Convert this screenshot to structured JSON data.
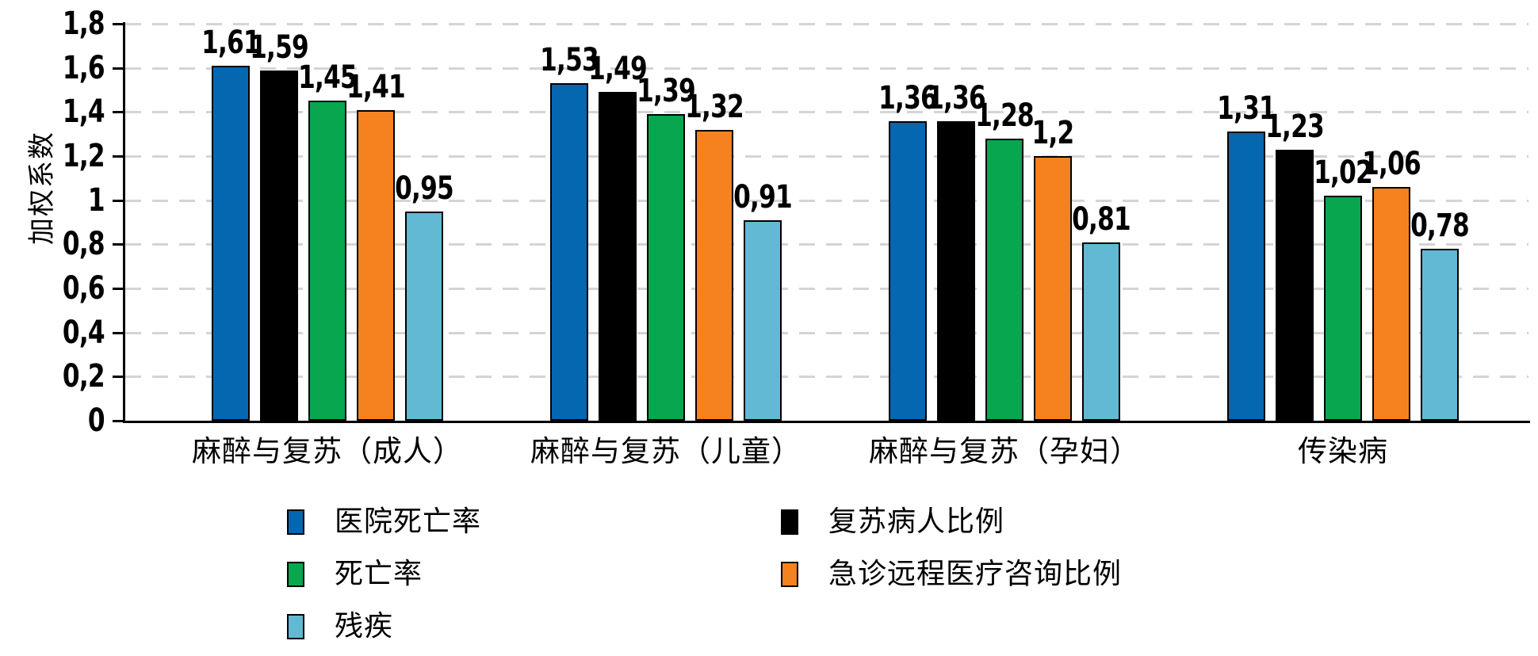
{
  "chart_data": {
    "type": "bar",
    "title": "",
    "ylabel": "加权系数",
    "xlabel": "",
    "ylim": [
      0,
      1.8
    ],
    "ytick_step": 0.2,
    "ytick_labels": [
      "0",
      "0,2",
      "0,4",
      "0,6",
      "0,8",
      "1",
      "1,2",
      "1,4",
      "1,6",
      "1,8"
    ],
    "grid": "horizontal-dashed",
    "gridline_color": "#d4d4d4",
    "legend_position": "bottom-two-columns",
    "decimal_separator": ",",
    "categories": [
      "麻醉与复苏（成人）",
      "麻醉与复苏（儿童）",
      "麻醉与复苏（孕妇）",
      "传染病"
    ],
    "series": [
      {
        "name": "医院死亡率",
        "color": "#0667b1",
        "values": [
          1.61,
          1.53,
          1.36,
          1.31
        ],
        "labels": [
          "1,61",
          "1,53",
          "1,36",
          "1,31"
        ]
      },
      {
        "name": "复苏病人比例",
        "color": "#000000",
        "values": [
          1.59,
          1.49,
          1.36,
          1.23
        ],
        "labels": [
          "1,59",
          "1,49",
          "1,36",
          "1,23"
        ]
      },
      {
        "name": "死亡率",
        "color": "#07a64f",
        "values": [
          1.45,
          1.39,
          1.28,
          1.02
        ],
        "labels": [
          "1,45",
          "1,39",
          "1,28",
          "1,02"
        ]
      },
      {
        "name": "急诊远程医疗咨询比例",
        "color": "#f5821f",
        "values": [
          1.41,
          1.32,
          1.2,
          1.06
        ],
        "labels": [
          "1,41",
          "1,32",
          "1,2",
          "1,06"
        ]
      },
      {
        "name": "残疾",
        "color": "#62b9d3",
        "values": [
          0.95,
          0.91,
          0.81,
          0.78
        ],
        "labels": [
          "0,95",
          "0,91",
          "0,81",
          "0,78"
        ]
      }
    ]
  },
  "legend": {
    "columns": [
      [
        {
          "label": "医院死亡率",
          "color": "#0667b1"
        },
        {
          "label": "死亡率",
          "color": "#07a64f"
        },
        {
          "label": "残疾",
          "color": "#62b9d3"
        }
      ],
      [
        {
          "label": "复苏病人比例",
          "color": "#000000"
        },
        {
          "label": "急诊远程医疗咨询比例",
          "color": "#f5821f"
        }
      ]
    ]
  }
}
